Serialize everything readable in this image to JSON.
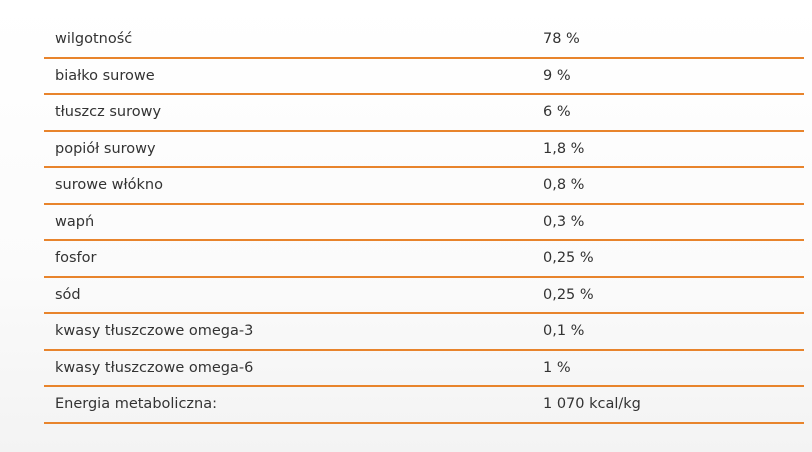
{
  "table": {
    "rows": [
      [
        "wilgotność",
        "78 %"
      ],
      [
        "białko surowe",
        "9 %"
      ],
      [
        "tłuszcz surowy",
        "6 %"
      ],
      [
        "popiół surowy",
        "1,8 %"
      ],
      [
        "surowe włókno",
        "0,8 %"
      ],
      [
        "wapń",
        "0,3 %"
      ],
      [
        "fosfor",
        "0,25 %"
      ],
      [
        "sód",
        "0,25 %"
      ],
      [
        "kwasy tłuszczowe omega-3",
        "0,1 %"
      ],
      [
        "kwasy tłuszczowe omega-6",
        "1 %"
      ],
      [
        "Energia metaboliczna:",
        "1 070 kcal/kg"
      ]
    ]
  }
}
